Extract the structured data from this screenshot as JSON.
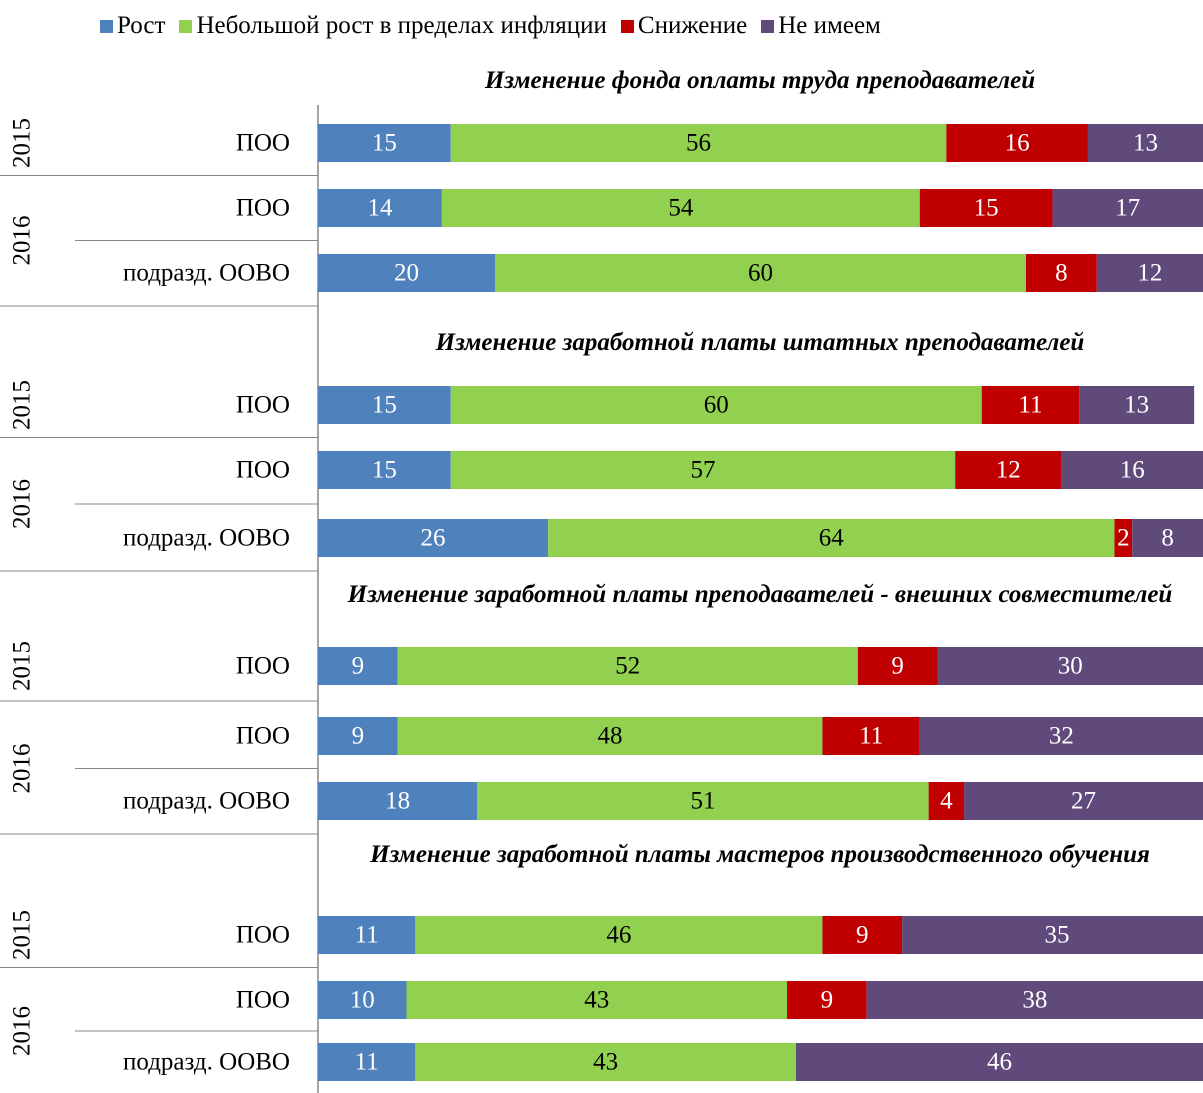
{
  "chart_data": {
    "type": "bar",
    "orientation": "horizontal",
    "stacked": true,
    "xlim": [
      0,
      100
    ],
    "series": [
      {
        "name": "Рост",
        "color": "#4f81bd"
      },
      {
        "name": "Небольшой рост в пределах инфляции",
        "color": "#92d050"
      },
      {
        "name": "Снижение",
        "color": "#c00000"
      },
      {
        "name": "Не имеем",
        "color": "#604a7b"
      }
    ],
    "panels": [
      {
        "title": "Изменение фонда оплаты труда преподавателей",
        "groups": [
          {
            "label": "2015",
            "categories": [
              "ПОО"
            ],
            "values": [
              [
                15,
                56,
                16,
                13
              ]
            ]
          },
          {
            "label": "2016",
            "categories": [
              "ПОО",
              "подразд. ООВО"
            ],
            "values": [
              [
                14,
                54,
                15,
                17
              ],
              [
                20,
                60,
                8,
                12
              ]
            ]
          }
        ]
      },
      {
        "title": "Изменение заработной платы штатных преподавателей",
        "groups": [
          {
            "label": "2015",
            "categories": [
              "ПОО"
            ],
            "values": [
              [
                15,
                60,
                11,
                13
              ]
            ]
          },
          {
            "label": "2016",
            "categories": [
              "ПОО",
              "подразд. ООВО"
            ],
            "values": [
              [
                15,
                57,
                12,
                16
              ],
              [
                26,
                64,
                2,
                8
              ]
            ]
          }
        ]
      },
      {
        "title": "Изменение заработной платы преподавателей - внешних совместителей",
        "groups": [
          {
            "label": "2015",
            "categories": [
              "ПОО"
            ],
            "values": [
              [
                9,
                52,
                9,
                30
              ]
            ]
          },
          {
            "label": "2016",
            "categories": [
              "ПОО",
              "подразд. ООВО"
            ],
            "values": [
              [
                9,
                48,
                11,
                32
              ],
              [
                18,
                51,
                4,
                27
              ]
            ]
          }
        ]
      },
      {
        "title": "Изменение заработной платы мастеров производственного обучения",
        "groups": [
          {
            "label": "2015",
            "categories": [
              "ПОО"
            ],
            "values": [
              [
                11,
                46,
                9,
                35
              ]
            ]
          },
          {
            "label": "2016",
            "categories": [
              "ПОО",
              "подразд. ООВО"
            ],
            "values": [
              [
                10,
                43,
                9,
                38
              ],
              [
                11,
                43,
                null,
                46
              ]
            ]
          }
        ]
      }
    ]
  }
}
